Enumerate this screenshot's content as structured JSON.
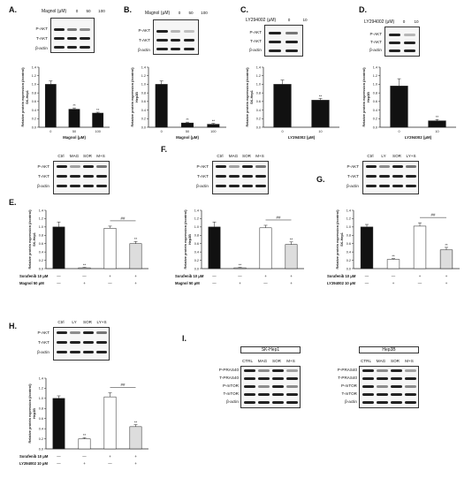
{
  "panels": [
    {
      "id": "A",
      "label": "A.",
      "treatment_label": "Magnol (μM)",
      "lanes": [
        "0",
        "50",
        "100"
      ],
      "rows": [
        "P-AKT",
        "T-AKT",
        "β-actin"
      ],
      "chart_data": {
        "type": "bar",
        "categories": [
          "0",
          "50",
          "100"
        ],
        "values": [
          1.0,
          0.42,
          0.33
        ],
        "errors": [
          0.08,
          0.03,
          0.02
        ],
        "sig": [
          "",
          "**",
          "**"
        ],
        "ylabel": "Relative protein expression (/control)",
        "ylabel2": "SK-Hep1",
        "xlabel": "Magnol (μM)",
        "ylim": [
          0,
          1.4
        ],
        "yticks": [
          "0.0",
          "0.2",
          "0.4",
          "0.6",
          "0.8",
          "1.0",
          "1.2",
          "1.4"
        ]
      }
    },
    {
      "id": "B",
      "label": "B.",
      "treatment_label": "Magnol (μM)",
      "lanes": [
        "0",
        "50",
        "100"
      ],
      "rows": [
        "P-AKT",
        "T-AKT",
        "β-actin"
      ],
      "chart_data": {
        "type": "bar",
        "categories": [
          "0",
          "50",
          "100"
        ],
        "values": [
          1.0,
          0.1,
          0.07
        ],
        "errors": [
          0.08,
          0.02,
          0.02
        ],
        "sig": [
          "",
          "**",
          "**"
        ],
        "ylabel": "Relative protein expression (/control)",
        "ylabel2": "Hep3B",
        "xlabel": "Magnol (μM)",
        "ylim": [
          0,
          1.4
        ],
        "yticks": [
          "0.0",
          "0.2",
          "0.4",
          "0.6",
          "0.8",
          "1.0",
          "1.2",
          "1.4"
        ]
      }
    },
    {
      "id": "C",
      "label": "C.",
      "treatment_label": "LY294002 (μM)",
      "lanes": [
        "0",
        "10"
      ],
      "rows": [
        "P-AKT",
        "T-AKT",
        "β-actin"
      ],
      "chart_data": {
        "type": "bar",
        "categories": [
          "0",
          "10"
        ],
        "values": [
          1.0,
          0.63
        ],
        "errors": [
          0.1,
          0.04
        ],
        "sig": [
          "",
          "**"
        ],
        "ylabel": "Relative protein expression (/control)",
        "ylabel2": "SK-Hep1",
        "xlabel": "LY294002 (μM)",
        "ylim": [
          0,
          1.4
        ],
        "yticks": [
          "0.0",
          "0.2",
          "0.4",
          "0.6",
          "0.8",
          "1.0",
          "1.2",
          "1.4"
        ]
      }
    },
    {
      "id": "D",
      "label": "D.",
      "treatment_label": "LY294002 (μM)",
      "lanes": [
        "0",
        "10"
      ],
      "rows": [
        "P-AKT",
        "T-AKT",
        "β-actin"
      ],
      "chart_data": {
        "type": "bar",
        "categories": [
          "0",
          "10"
        ],
        "values": [
          0.96,
          0.15
        ],
        "errors": [
          0.17,
          0.03
        ],
        "sig": [
          "",
          "**"
        ],
        "ylabel": "Relative protein expression (/control)",
        "ylabel2": "Hep3B",
        "xlabel": "LY294002 (μM)",
        "ylim": [
          0,
          1.4
        ],
        "yticks": [
          "0.0",
          "0.2",
          "0.4",
          "0.6",
          "0.8",
          "1.0",
          "1.2",
          "1.4"
        ]
      }
    },
    {
      "id": "E",
      "label": "E.",
      "lanes": [
        "Ctrl",
        "MAG",
        "SOR",
        "M+S"
      ],
      "rows": [
        "P-AKT",
        "T-AKT",
        "β-actin"
      ],
      "chart_data": {
        "type": "bar",
        "values": [
          1.0,
          0.02,
          0.97,
          0.6
        ],
        "errors": [
          0.12,
          0.01,
          0.05,
          0.05
        ],
        "sig": [
          "",
          "**",
          "",
          "**"
        ],
        "hash": "##",
        "ylabel": "Relative protein expression (/control)",
        "ylabel2": "SK-Hep1",
        "ylim": [
          0,
          1.4
        ],
        "yticks": [
          "0.0",
          "0.2",
          "0.4",
          "0.6",
          "0.8",
          "1.0",
          "1.2",
          "1.4"
        ],
        "treatments": [
          {
            "name": "Sorafenib 10 μM",
            "marks": [
              "—",
              "—",
              "+",
              "+"
            ]
          },
          {
            "name": "Magnol 50 μM",
            "marks": [
              "—",
              "+",
              "—",
              "+"
            ]
          }
        ]
      }
    },
    {
      "id": "F",
      "label": "F.",
      "lanes": [
        "Ctrl",
        "MAG",
        "SOR",
        "M+S"
      ],
      "rows": [
        "P-AKT",
        "T-AKT",
        "β-actin"
      ],
      "chart_data": {
        "type": "bar",
        "values": [
          1.0,
          0.02,
          0.98,
          0.58
        ],
        "errors": [
          0.12,
          0.01,
          0.06,
          0.06
        ],
        "sig": [
          "",
          "**",
          "",
          "**"
        ],
        "hash": "##",
        "ylabel": "Relative protein expression (/control)",
        "ylabel2": "Hep3B",
        "ylim": [
          0,
          1.4
        ],
        "yticks": [
          "0.0",
          "0.2",
          "0.4",
          "0.6",
          "0.8",
          "1.0",
          "1.2",
          "1.4"
        ],
        "treatments": [
          {
            "name": "Sorafenib 10 μM",
            "marks": [
              "—",
              "—",
              "+",
              "+"
            ]
          },
          {
            "name": "Magnol 50 μM",
            "marks": [
              "—",
              "+",
              "—",
              "+"
            ]
          }
        ]
      }
    },
    {
      "id": "G",
      "label": "G.",
      "lanes": [
        "Ctrl",
        "LY",
        "SOR",
        "LY+S"
      ],
      "rows": [
        "P-AKT",
        "T-AKT",
        "β-actin"
      ],
      "chart_data": {
        "type": "bar",
        "values": [
          1.0,
          0.22,
          1.02,
          0.45
        ],
        "errors": [
          0.06,
          0.02,
          0.08,
          0.06
        ],
        "sig": [
          "",
          "**",
          "",
          "**"
        ],
        "hash": "##",
        "ylabel": "Relative protein expression (/control)",
        "ylabel2": "SK-Hep1",
        "ylim": [
          0,
          1.4
        ],
        "yticks": [
          "0.0",
          "0.2",
          "0.4",
          "0.6",
          "0.8",
          "1.0",
          "1.2",
          "1.4"
        ],
        "treatments": [
          {
            "name": "Sorafenib 10 μM",
            "marks": [
              "—",
              "—",
              "+",
              "+"
            ]
          },
          {
            "name": "LY294002 10 μM",
            "marks": [
              "—",
              "+",
              "—",
              "+"
            ]
          }
        ]
      }
    },
    {
      "id": "H",
      "label": "H.",
      "lanes": [
        "Ctrl",
        "LY",
        "SOR",
        "LY+S"
      ],
      "rows": [
        "P-AKT",
        "T-AKT",
        "β-actin"
      ],
      "chart_data": {
        "type": "bar",
        "values": [
          1.0,
          0.2,
          1.03,
          0.44
        ],
        "errors": [
          0.05,
          0.02,
          0.08,
          0.04
        ],
        "sig": [
          "",
          "**",
          "",
          "**"
        ],
        "hash": "##",
        "ylabel": "Relative protein expression (/control)",
        "ylabel2": "Hep3B",
        "ylim": [
          0,
          1.4
        ],
        "yticks": [
          "0.0",
          "0.2",
          "0.4",
          "0.6",
          "0.8",
          "1.0",
          "1.2",
          "1.4"
        ],
        "treatments": [
          {
            "name": "Sorafenib 10 μM",
            "marks": [
              "—",
              "—",
              "+",
              "+"
            ]
          },
          {
            "name": "LY294002 10 μM",
            "marks": [
              "—",
              "+",
              "—",
              "+"
            ]
          }
        ]
      }
    }
  ],
  "panel_I": {
    "label": "I.",
    "blots": [
      {
        "title": "SK-Hep1",
        "lanes": [
          "CTRL",
          "MAG",
          "SOR",
          "M+S"
        ],
        "rows": [
          "P-PRAS40",
          "T-PRAS40",
          "P-mTOR",
          "T-mTOR",
          "β-actin"
        ]
      },
      {
        "title": "Hep3B",
        "lanes": [
          "CTRL",
          "MAG",
          "SOR",
          "M+S"
        ],
        "rows": [
          "P-PRAS40",
          "T-PRAS40",
          "P-mTOR",
          "T-mTOR",
          "β-actin"
        ]
      }
    ]
  },
  "colors": {
    "bar_dark": "#111111",
    "bar_light": "#bbbbbb",
    "bar_white": "#ffffff"
  }
}
